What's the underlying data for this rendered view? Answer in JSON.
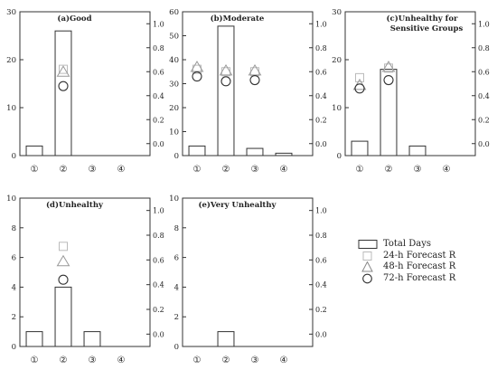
{
  "chart_data": [
    {
      "type": "bar",
      "title": "(a)Good",
      "categories": [
        "①",
        "②",
        "③",
        "④"
      ],
      "values": [
        2,
        26,
        0,
        0
      ],
      "ylim": [
        0,
        30
      ],
      "y_ticks": [
        0,
        10,
        20,
        30
      ],
      "y2lim": [
        -0.1,
        1.1
      ],
      "y2_ticks": [
        "0.0",
        "0.2",
        "0.4",
        "0.6",
        "0.8",
        "1.0"
      ],
      "series": [
        {
          "name": "24-h Forecast R",
          "marker": "square",
          "points": [
            {
              "category": "②",
              "value": 0.62
            }
          ]
        },
        {
          "name": "48-h Forecast R",
          "marker": "triangle",
          "points": [
            {
              "category": "②",
              "value": 0.6
            }
          ]
        },
        {
          "name": "72-h Forecast R",
          "marker": "circle",
          "points": [
            {
              "category": "②",
              "value": 0.48
            }
          ]
        }
      ]
    },
    {
      "type": "bar",
      "title": "(b)Moderate",
      "categories": [
        "①",
        "②",
        "③",
        "④"
      ],
      "values": [
        4,
        54,
        3,
        1
      ],
      "ylim": [
        0,
        60
      ],
      "y_ticks": [
        0,
        10,
        20,
        30,
        40,
        50,
        60
      ],
      "y2lim": [
        -0.1,
        1.1
      ],
      "y2_ticks": [
        "0.0",
        "0.2",
        "0.4",
        "0.6",
        "0.8",
        "1.0"
      ],
      "series": [
        {
          "name": "24-h Forecast R",
          "marker": "square",
          "points": [
            {
              "category": "①",
              "value": 0.62
            },
            {
              "category": "②",
              "value": 0.6
            },
            {
              "category": "③",
              "value": 0.6
            }
          ]
        },
        {
          "name": "48-h Forecast R",
          "marker": "triangle",
          "points": [
            {
              "category": "①",
              "value": 0.64
            },
            {
              "category": "②",
              "value": 0.61
            },
            {
              "category": "③",
              "value": 0.61
            }
          ]
        },
        {
          "name": "72-h Forecast R",
          "marker": "circle",
          "points": [
            {
              "category": "①",
              "value": 0.56
            },
            {
              "category": "②",
              "value": 0.52
            },
            {
              "category": "③",
              "value": 0.53
            }
          ]
        }
      ]
    },
    {
      "type": "bar",
      "title": "(c)Unhealthy for Sensitive Groups",
      "title_line1": "(c)Unhealthy for",
      "title_line2": "Sensitive Groups",
      "categories": [
        "①",
        "②",
        "③",
        "④"
      ],
      "values": [
        3,
        18,
        2,
        0
      ],
      "ylim": [
        0,
        30
      ],
      "y_ticks": [
        0,
        10,
        20,
        30
      ],
      "y2lim": [
        -0.1,
        1.1
      ],
      "y2_ticks": [
        "0.0",
        "0.2",
        "0.4",
        "0.6",
        "0.8",
        "1.0"
      ],
      "series": [
        {
          "name": "24-h Forecast R",
          "marker": "square",
          "points": [
            {
              "category": "①",
              "value": 0.55
            },
            {
              "category": "②",
              "value": 0.63
            }
          ]
        },
        {
          "name": "48-h Forecast R",
          "marker": "triangle",
          "points": [
            {
              "category": "①",
              "value": 0.49
            },
            {
              "category": "②",
              "value": 0.64
            }
          ]
        },
        {
          "name": "72-h Forecast R",
          "marker": "circle",
          "points": [
            {
              "category": "①",
              "value": 0.46
            },
            {
              "category": "②",
              "value": 0.53
            }
          ]
        }
      ]
    },
    {
      "type": "bar",
      "title": "(d)Unhealthy",
      "categories": [
        "①",
        "②",
        "③",
        "④"
      ],
      "values": [
        1,
        4,
        1,
        0
      ],
      "ylim": [
        0,
        10
      ],
      "y_ticks": [
        0,
        2,
        4,
        6,
        8,
        10
      ],
      "y2lim": [
        -0.1,
        1.1
      ],
      "y2_ticks": [
        "0.0",
        "0.2",
        "0.4",
        "0.6",
        "0.8",
        "1.0"
      ],
      "series": [
        {
          "name": "24-h Forecast R",
          "marker": "square",
          "points": [
            {
              "category": "②",
              "value": 0.71
            }
          ]
        },
        {
          "name": "48-h Forecast R",
          "marker": "triangle",
          "points": [
            {
              "category": "②",
              "value": 0.59
            }
          ]
        },
        {
          "name": "72-h Forecast R",
          "marker": "circle",
          "points": [
            {
              "category": "②",
              "value": 0.44
            }
          ]
        }
      ]
    },
    {
      "type": "bar",
      "title": "(e)Very Unhealthy",
      "categories": [
        "①",
        "②",
        "③",
        "④"
      ],
      "values": [
        0,
        1,
        0,
        0
      ],
      "ylim": [
        0,
        10
      ],
      "y_ticks": [
        0,
        2,
        4,
        6,
        8,
        10
      ],
      "y2lim": [
        -0.1,
        1.1
      ],
      "y2_ticks": [
        "0.0",
        "0.2",
        "0.4",
        "0.6",
        "0.8",
        "1.0"
      ],
      "series": []
    }
  ],
  "legend": {
    "placement": "right",
    "items": [
      {
        "label": "Total Days",
        "marker": "bar"
      },
      {
        "label": "24-h Forecast R",
        "marker": "square"
      },
      {
        "label": "48-h Forecast R",
        "marker": "triangle"
      },
      {
        "label": "72-h Forecast R",
        "marker": "circle"
      }
    ]
  },
  "colors": {
    "bar_edge": "#333333",
    "square": "#bbbbbb",
    "triangle": "#999999",
    "circle": "#333333"
  }
}
